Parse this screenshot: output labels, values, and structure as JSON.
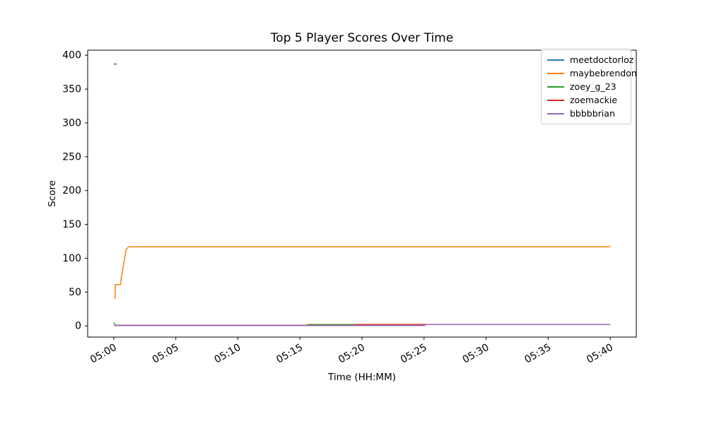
{
  "figure": {
    "background": "#ffffff",
    "axis_color": "#000000",
    "legend_border_color": "#cccccc"
  },
  "chart_data": {
    "type": "line",
    "title": "Top 5 Player Scores Over Time",
    "xlabel": "Time (HH:MM)",
    "ylabel": "Score",
    "x_tick_labels": [
      "05:00",
      "05:05",
      "05:10",
      "05:15",
      "05:20",
      "05:25",
      "05:30",
      "05:35",
      "05:40"
    ],
    "x_tick_minutes": [
      0,
      5,
      10,
      15,
      20,
      25,
      30,
      35,
      40
    ],
    "y_ticks": [
      0,
      50,
      100,
      150,
      200,
      250,
      300,
      350,
      400
    ],
    "xlim_minutes": [
      -2.1,
      42.1
    ],
    "ylim": [
      -16.5,
      407.5
    ],
    "grid": false,
    "legend_position": "upper right",
    "series": [
      {
        "name": "meetdoctorloz",
        "color": "#1f77b4",
        "points": [
          [
            0.0,
            387
          ],
          [
            0.25,
            387
          ]
        ]
      },
      {
        "name": "maybebrendon",
        "color": "#ff7f0e",
        "points": [
          [
            0.1,
            40
          ],
          [
            0.12,
            61
          ],
          [
            0.55,
            61
          ],
          [
            0.6,
            70
          ],
          [
            1.0,
            113
          ],
          [
            1.2,
            117
          ],
          [
            40.0,
            117
          ]
        ]
      },
      {
        "name": "zoey_g_23",
        "color": "#2ca02c",
        "points": [
          [
            0.0,
            5
          ],
          [
            0.1,
            1
          ],
          [
            15.5,
            1
          ],
          [
            15.7,
            2
          ],
          [
            40.0,
            2
          ]
        ]
      },
      {
        "name": "zoemackie",
        "color": "#d62728",
        "points": [
          [
            0.05,
            0.8
          ],
          [
            19.3,
            0.8
          ],
          [
            19.5,
            2
          ],
          [
            40.0,
            2
          ]
        ]
      },
      {
        "name": "bbbbbrian",
        "color": "#9467bd",
        "points": [
          [
            0.05,
            0.6
          ],
          [
            25.0,
            0.6
          ],
          [
            25.2,
            2
          ],
          [
            40.0,
            2
          ]
        ]
      }
    ]
  }
}
